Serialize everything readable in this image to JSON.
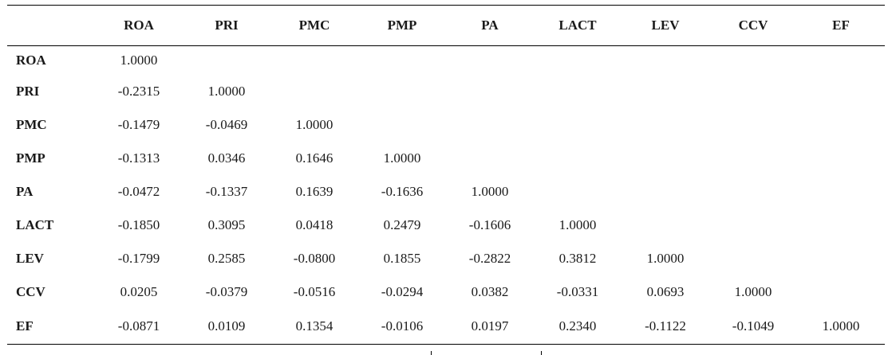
{
  "table": {
    "columns": [
      "",
      "ROA",
      "PRI",
      "PMC",
      "PMP",
      "PA",
      "LACT",
      "LEV",
      "CCV",
      "EF"
    ],
    "rows": [
      {
        "label": "ROA",
        "values": [
          "1.0000",
          "",
          "",
          "",
          "",
          "",
          "",
          "",
          ""
        ]
      },
      {
        "label": "PRI",
        "values": [
          "-0.2315",
          "1.0000",
          "",
          "",
          "",
          "",
          "",
          "",
          ""
        ]
      },
      {
        "label": "PMC",
        "values": [
          "-0.1479",
          "-0.0469",
          "1.0000",
          "",
          "",
          "",
          "",
          "",
          ""
        ]
      },
      {
        "label": "PMP",
        "values": [
          "-0.1313",
          "0.0346",
          "0.1646",
          "1.0000",
          "",
          "",
          "",
          "",
          ""
        ]
      },
      {
        "label": "PA",
        "values": [
          "-0.0472",
          "-0.1337",
          "0.1639",
          "-0.1636",
          "1.0000",
          "",
          "",
          "",
          ""
        ]
      },
      {
        "label": "LACT",
        "values": [
          "-0.1850",
          "0.3095",
          "0.0418",
          "0.2479",
          "-0.1606",
          "1.0000",
          "",
          "",
          ""
        ]
      },
      {
        "label": "LEV",
        "values": [
          "-0.1799",
          "0.2585",
          "-0.0800",
          "0.1855",
          "-0.2822",
          "0.3812",
          "1.0000",
          "",
          ""
        ]
      },
      {
        "label": "CCV",
        "values": [
          "0.0205",
          "-0.0379",
          "-0.0516",
          "-0.0294",
          "0.0382",
          "-0.0331",
          "0.0693",
          "1.0000",
          ""
        ]
      },
      {
        "label": "EF",
        "values": [
          "-0.0871",
          "0.0109",
          "0.1354",
          "-0.0106",
          "0.0197",
          "0.2340",
          "-0.1122",
          "-0.1049",
          "1.0000"
        ]
      }
    ]
  }
}
